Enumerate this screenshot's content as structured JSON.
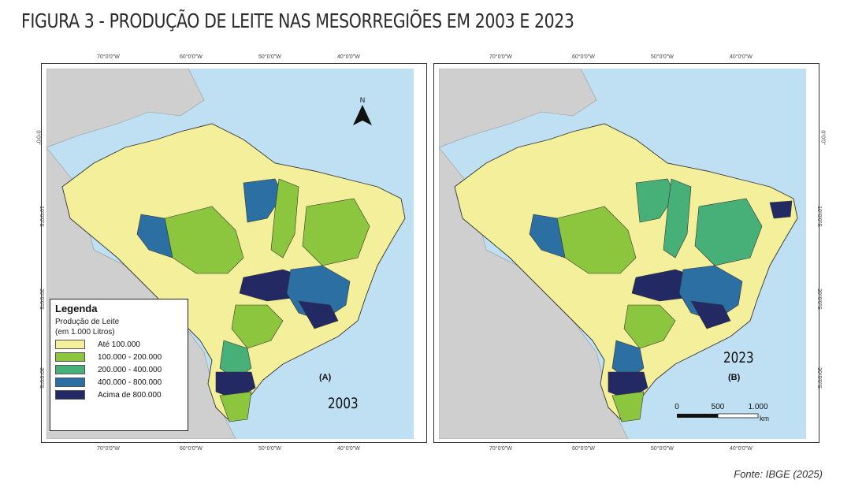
{
  "figure": {
    "title": "FIGURA 3 - PRODUÇÃO DE LEITE NAS MESORREGIÕES EM 2003 E 2023",
    "source": "Fonte: IBGE (2025)"
  },
  "coordinates": {
    "longitudes": [
      "70°0'0\"W",
      "60°0'0\"W",
      "50°0'0\"W",
      "40°0'0\"W"
    ],
    "latitudes": [
      "0°0'0\"",
      "10°0'0\"S",
      "20°0'0\"S",
      "30°0'0\"S"
    ]
  },
  "legend": {
    "title": "Legenda",
    "subtitle": "Produção de Leite",
    "unit": "(em 1.000 Litros)",
    "classes": [
      {
        "label": "Até 100.000",
        "color": "#f3ef9a"
      },
      {
        "label": "100.000 - 200.000",
        "color": "#8cc63e"
      },
      {
        "label": "200.000 - 400.000",
        "color": "#46b078"
      },
      {
        "label": "400.000 - 800.000",
        "color": "#2b6fa3"
      },
      {
        "label": "Acima de 800.000",
        "color": "#232a63"
      }
    ]
  },
  "panels": [
    {
      "id": "A",
      "label": "(A)",
      "year": "2003"
    },
    {
      "id": "B",
      "label": "(B)",
      "year": "2023"
    }
  ],
  "north_arrow": "N",
  "scale_bar": {
    "ticks": [
      "0",
      "500",
      "1.000"
    ],
    "unit": "km"
  },
  "colors": {
    "ocean": "#bfe0f2",
    "neighbors": "#cfcfcf",
    "border": "#333333"
  }
}
